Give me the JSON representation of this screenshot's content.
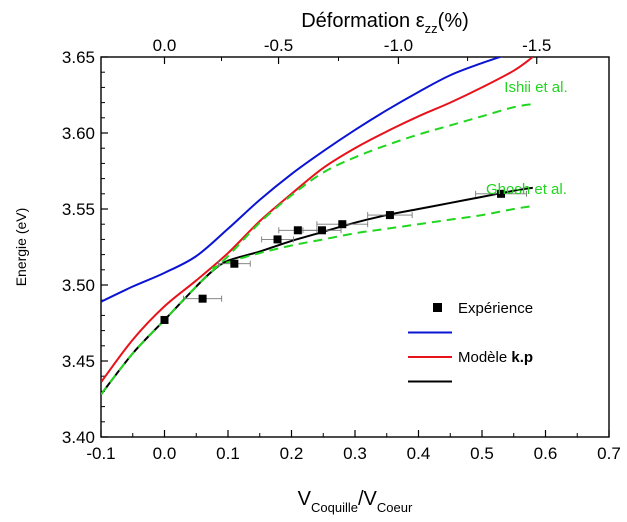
{
  "chart_data": {
    "type": "line",
    "top_axis": {
      "title_main": "Déformation ε",
      "title_sub": "zz",
      "title_suffix": "(%)",
      "ticks": [
        {
          "label": "0.0",
          "at_x": 0.0
        },
        {
          "label": "-0.5",
          "at_x": 0.1796
        },
        {
          "label": "-1.0",
          "at_x": 0.3684
        },
        {
          "label": "-1.5",
          "at_x": 0.5862
        }
      ]
    },
    "x_axis": {
      "label_main": "V",
      "label_sub1": "Coquille",
      "label_mid": "/V",
      "label_sub2": "Coeur",
      "lim": [
        -0.1,
        0.7
      ],
      "ticks": [
        "-0.1",
        "0.0",
        "0.1",
        "0.2",
        "0.3",
        "0.4",
        "0.5",
        "0.6",
        "0.7"
      ]
    },
    "y_axis": {
      "label": "Energie (eV)",
      "lim": [
        3.4,
        3.65
      ],
      "ticks": [
        "3.40",
        "3.45",
        "3.50",
        "3.55",
        "3.60",
        "3.65"
      ]
    },
    "series": [
      {
        "id": "blue",
        "color": "#0a14d2",
        "dash": "solid",
        "x": [
          -0.1,
          -0.05,
          0.0,
          0.05,
          0.1,
          0.15,
          0.2,
          0.25,
          0.3,
          0.35,
          0.4,
          0.45,
          0.5,
          0.55
        ],
        "y": [
          3.489,
          3.499,
          3.508,
          3.519,
          3.537,
          3.556,
          3.573,
          3.588,
          3.602,
          3.615,
          3.627,
          3.638,
          3.646,
          3.653
        ]
      },
      {
        "id": "red",
        "color": "#e8121a",
        "dash": "solid",
        "x": [
          -0.1,
          -0.05,
          0.0,
          0.05,
          0.1,
          0.15,
          0.2,
          0.25,
          0.3,
          0.35,
          0.4,
          0.45,
          0.5,
          0.55,
          0.58
        ],
        "y": [
          3.436,
          3.464,
          3.486,
          3.503,
          3.521,
          3.542,
          3.56,
          3.577,
          3.59,
          3.601,
          3.611,
          3.62,
          3.63,
          3.641,
          3.65
        ]
      },
      {
        "id": "black",
        "color": "#000000",
        "dash": "solid",
        "x": [
          -0.1,
          -0.05,
          0.0,
          0.05,
          0.075,
          0.1,
          0.15,
          0.2,
          0.25,
          0.3,
          0.35,
          0.4,
          0.45,
          0.5,
          0.55,
          0.58
        ],
        "y": [
          3.428,
          3.455,
          3.477,
          3.499,
          3.509,
          3.516,
          3.522,
          3.529,
          3.535,
          3.541,
          3.546,
          3.55,
          3.554,
          3.558,
          3.562,
          3.564
        ]
      },
      {
        "id": "green-upper",
        "color": "#21d61f",
        "dash": "dashed",
        "x": [
          -0.1,
          -0.05,
          0.0,
          0.05,
          0.1,
          0.15,
          0.2,
          0.25,
          0.3,
          0.35,
          0.4,
          0.45,
          0.5,
          0.55,
          0.58
        ],
        "y": [
          3.428,
          3.455,
          3.477,
          3.499,
          3.519,
          3.541,
          3.559,
          3.574,
          3.584,
          3.592,
          3.599,
          3.605,
          3.611,
          3.617,
          3.619
        ]
      },
      {
        "id": "green-lower",
        "color": "#21d61f",
        "dash": "dashed",
        "x": [
          0.075,
          0.1,
          0.15,
          0.2,
          0.25,
          0.3,
          0.35,
          0.4,
          0.45,
          0.5,
          0.55,
          0.58
        ],
        "y": [
          3.511,
          3.515,
          3.521,
          3.526,
          3.53,
          3.534,
          3.537,
          3.54,
          3.543,
          3.546,
          3.55,
          3.552
        ]
      }
    ],
    "experiment": {
      "x": [
        0.0,
        0.06,
        0.11,
        0.178,
        0.21,
        0.248,
        0.28,
        0.355,
        0.53
      ],
      "y": [
        3.477,
        3.491,
        3.514,
        3.53,
        3.536,
        3.536,
        3.54,
        3.546,
        3.56
      ],
      "xerr": [
        0.0,
        0.03,
        0.025,
        0.025,
        0.03,
        0.03,
        0.04,
        0.035,
        0.04
      ],
      "yerr": [
        0.002,
        0.002,
        0.002,
        0.002,
        0.002,
        0.002,
        0.002,
        0.002,
        0.002
      ]
    },
    "annotations": [
      {
        "text": "Ishii et al.",
        "color": "#21d61f",
        "x": 0.585,
        "y": 3.627
      },
      {
        "text": "Ghosh et al.",
        "color": "#21d61f",
        "x": 0.57,
        "y": 3.56
      }
    ],
    "legend": {
      "placement": "lower-right",
      "items": [
        {
          "text": "Expérience",
          "bold_suffix": "",
          "marker": "square",
          "color": "#000000"
        },
        {
          "text": "",
          "bold_suffix": "",
          "marker": "line",
          "color": "#0a14d2"
        },
        {
          "text": "Modèle ",
          "bold_suffix": "k.p",
          "marker": "line",
          "color": "#e8121a"
        },
        {
          "text": "",
          "bold_suffix": "",
          "marker": "line",
          "color": "#000000"
        }
      ]
    }
  }
}
